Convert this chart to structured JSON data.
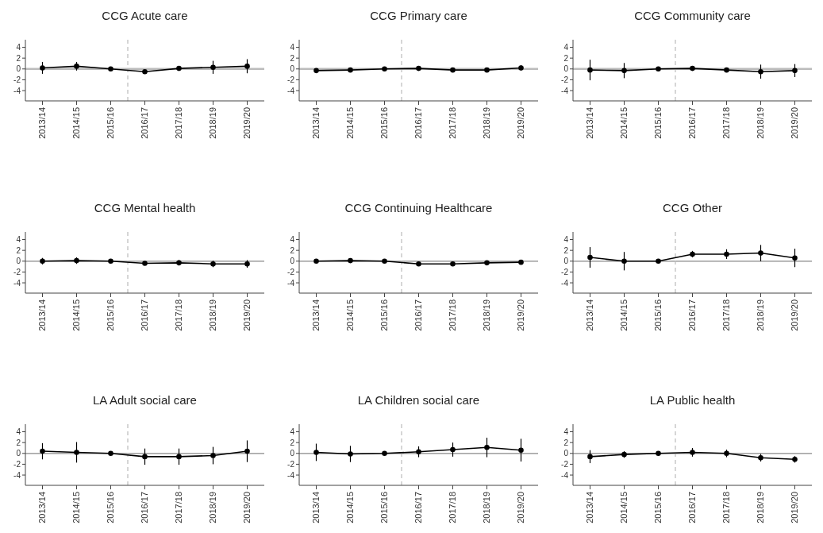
{
  "chart_data": [
    {
      "type": "line",
      "title": "CCG Acute care",
      "categories": [
        "2013/14",
        "2014/15",
        "2015/16",
        "2016/17",
        "2017/18",
        "2018/19",
        "2019/20"
      ],
      "ylim": [
        -5.9,
        5.4
      ],
      "yticks": [
        4,
        2,
        0,
        -2,
        -4
      ],
      "marker": "circle",
      "line_style": "solid",
      "series": [
        {
          "color": "#000000",
          "values": [
            0.2,
            0.5,
            0,
            -0.5,
            0.1,
            0.3,
            0.5
          ],
          "errors": [
            1.1,
            0.8,
            0,
            0.2,
            0.4,
            1.2,
            1.3
          ]
        }
      ],
      "ref_lines": [
        {
          "axis": "y",
          "value": 0,
          "color": "#bbbbbb"
        }
      ]
    },
    {
      "type": "line",
      "title": "CCG Primary care",
      "categories": [
        "2013/14",
        "2014/15",
        "2015/16",
        "2016/17",
        "2017/18",
        "2018/19",
        "2019/20"
      ],
      "ylim": [
        -5.9,
        5.4
      ],
      "yticks": [
        4,
        2,
        0,
        -2,
        -4
      ],
      "marker": "circle",
      "line_style": "solid",
      "series": [
        {
          "color": "#000000",
          "values": [
            -0.3,
            -0.2,
            0,
            0.1,
            -0.2,
            -0.2,
            0.2
          ],
          "errors": [
            0.3,
            0.3,
            0,
            0.3,
            0.4,
            0.4,
            0.5
          ]
        }
      ],
      "ref_lines": [
        {
          "axis": "y",
          "value": 0,
          "color": "#bbbbbb"
        }
      ]
    },
    {
      "type": "line",
      "title": "CCG Community care",
      "categories": [
        "2013/14",
        "2014/15",
        "2015/16",
        "2016/17",
        "2017/18",
        "2018/19",
        "2019/20"
      ],
      "ylim": [
        -5.9,
        5.4
      ],
      "yticks": [
        4,
        2,
        0,
        -2,
        -4
      ],
      "marker": "circle",
      "line_style": "solid",
      "series": [
        {
          "color": "#000000",
          "values": [
            -0.2,
            -0.3,
            0,
            0.1,
            -0.2,
            -0.5,
            -0.3
          ],
          "errors": [
            1.9,
            1.4,
            0,
            0.3,
            0.4,
            1.3,
            1.2
          ]
        }
      ],
      "ref_lines": [
        {
          "axis": "y",
          "value": 0,
          "color": "#bbbbbb"
        }
      ]
    },
    {
      "type": "line",
      "title": "CCG Mental health",
      "categories": [
        "2013/14",
        "2014/15",
        "2015/16",
        "2016/17",
        "2017/18",
        "2018/19",
        "2019/20"
      ],
      "ylim": [
        -5.9,
        5.4
      ],
      "yticks": [
        4,
        2,
        0,
        -2,
        -4
      ],
      "marker": "circle",
      "line_style": "solid",
      "series": [
        {
          "color": "#000000",
          "values": [
            0,
            0.1,
            0,
            -0.4,
            -0.3,
            -0.5,
            -0.5
          ],
          "errors": [
            0.6,
            0.6,
            0,
            0.3,
            0.5,
            0.6,
            0.7
          ]
        }
      ],
      "ref_lines": [
        {
          "axis": "y",
          "value": 0,
          "color": "#888888"
        }
      ]
    },
    {
      "type": "line",
      "title": "CCG Continuing Healthcare",
      "categories": [
        "2013/14",
        "2014/15",
        "2015/16",
        "2016/17",
        "2017/18",
        "2018/19",
        "2019/20"
      ],
      "ylim": [
        -5.9,
        5.4
      ],
      "yticks": [
        4,
        2,
        0,
        -2,
        -4
      ],
      "marker": "circle",
      "line_style": "solid",
      "series": [
        {
          "color": "#000000",
          "values": [
            0,
            0.1,
            0,
            -0.5,
            -0.5,
            -0.3,
            -0.2
          ],
          "errors": [
            0.2,
            0.2,
            0,
            0.2,
            0.3,
            0.3,
            0.4
          ]
        }
      ],
      "ref_lines": [
        {
          "axis": "y",
          "value": 0,
          "color": "#888888"
        }
      ]
    },
    {
      "type": "line",
      "title": "CCG Other",
      "categories": [
        "2013/14",
        "2014/15",
        "2015/16",
        "2016/17",
        "2017/18",
        "2018/19",
        "2019/20"
      ],
      "ylim": [
        -5.9,
        5.4
      ],
      "yticks": [
        4,
        2,
        0,
        -2,
        -4
      ],
      "marker": "circle",
      "line_style": "solid",
      "series": [
        {
          "color": "#000000",
          "values": [
            0.7,
            0,
            0,
            1.3,
            1.3,
            1.5,
            0.6
          ],
          "errors": [
            1.9,
            1.7,
            0,
            0.6,
            0.9,
            1.5,
            1.7
          ]
        }
      ],
      "ref_lines": [
        {
          "axis": "y",
          "value": 0,
          "color": "#888888"
        }
      ]
    },
    {
      "type": "line",
      "title": "LA Adult social care",
      "categories": [
        "2013/14",
        "2014/15",
        "2015/16",
        "2016/17",
        "2017/18",
        "2018/19",
        "2019/20"
      ],
      "ylim": [
        -5.9,
        5.4
      ],
      "yticks": [
        4,
        2,
        0,
        -2,
        -4
      ],
      "marker": "circle",
      "line_style": "solid",
      "series": [
        {
          "color": "#000000",
          "values": [
            0.4,
            0.2,
            0,
            -0.6,
            -0.6,
            -0.4,
            0.4
          ],
          "errors": [
            1.5,
            1.9,
            0,
            1.5,
            1.5,
            1.6,
            2.0
          ]
        }
      ],
      "ref_lines": [
        {
          "axis": "y",
          "value": 0,
          "color": "#888888"
        }
      ]
    },
    {
      "type": "line",
      "title": "LA Children social care",
      "categories": [
        "2013/14",
        "2014/15",
        "2015/16",
        "2016/17",
        "2017/18",
        "2018/19",
        "2019/20"
      ],
      "ylim": [
        -5.9,
        5.4
      ],
      "yticks": [
        4,
        2,
        0,
        -2,
        -4
      ],
      "marker": "circle",
      "line_style": "solid",
      "series": [
        {
          "color": "#000000",
          "values": [
            0.2,
            -0.1,
            0,
            0.3,
            0.7,
            1.1,
            0.6
          ],
          "errors": [
            1.6,
            1.5,
            0,
            1.0,
            1.3,
            1.8,
            2.1
          ]
        }
      ],
      "ref_lines": [
        {
          "axis": "y",
          "value": 0,
          "color": "#888888"
        }
      ]
    },
    {
      "type": "line",
      "title": "LA Public health",
      "categories": [
        "2013/14",
        "2014/15",
        "2015/16",
        "2016/17",
        "2017/18",
        "2018/19",
        "2019/20"
      ],
      "ylim": [
        -5.9,
        5.4
      ],
      "yticks": [
        4,
        2,
        0,
        -2,
        -4
      ],
      "marker": "circle",
      "line_style": "solid",
      "series": [
        {
          "color": "#000000",
          "values": [
            -0.6,
            -0.2,
            0,
            0.2,
            0,
            -0.8,
            -1.1
          ],
          "errors": [
            1.2,
            0.6,
            0,
            0.8,
            0.7,
            0.7,
            0.6
          ]
        }
      ],
      "ref_lines": [
        {
          "axis": "y",
          "value": 0,
          "color": "#888888"
        }
      ]
    }
  ]
}
